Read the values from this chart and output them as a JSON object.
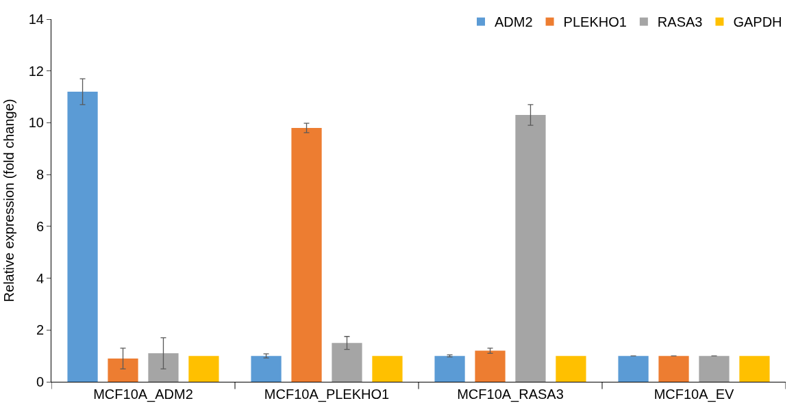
{
  "chart_data": {
    "type": "bar",
    "ylabel": "Relative expression (fold change)",
    "categories": [
      "MCF10A_ADM2",
      "MCF10A_PLEKHO1",
      "MCF10A_RASA3",
      "MCF10A_EV"
    ],
    "series": [
      {
        "name": "ADM2",
        "color": "#5b9bd5",
        "values": [
          11.2,
          1.0,
          1.0,
          1.0
        ],
        "errors": [
          0.5,
          0.08,
          0.04,
          null
        ]
      },
      {
        "name": "PLEKHO1",
        "color": "#ed7d31",
        "values": [
          0.9,
          9.8,
          1.2,
          1.0
        ],
        "errors": [
          0.4,
          0.18,
          0.1,
          null
        ]
      },
      {
        "name": "RASA3",
        "color": "#a5a5a5",
        "values": [
          1.1,
          1.5,
          10.3,
          1.0
        ],
        "errors": [
          0.6,
          0.25,
          0.4,
          null
        ]
      },
      {
        "name": "GAPDH",
        "color": "#ffc000",
        "values": [
          1.0,
          1.0,
          1.0,
          1.0
        ],
        "errors": [
          null,
          null,
          null,
          null
        ]
      }
    ],
    "ylim": [
      0,
      14
    ],
    "yticks": [
      0,
      2,
      4,
      6,
      8,
      10,
      12,
      14
    ],
    "legend": "top right"
  }
}
